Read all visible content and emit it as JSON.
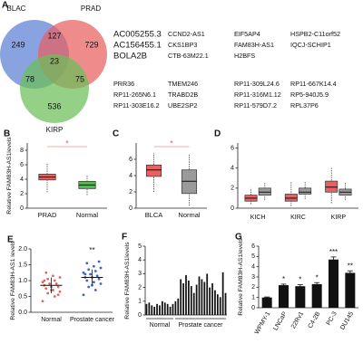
{
  "venn": {
    "label": "A",
    "sets": [
      {
        "name": "BLAC",
        "color": "#5b7fd6"
      },
      {
        "name": "PRAD",
        "color": "#e8605f"
      },
      {
        "name": "KIRP",
        "color": "#6bbf59"
      }
    ],
    "counts": [
      249,
      127,
      729,
      23,
      78,
      75,
      536
    ]
  },
  "genes": {
    "highlight": [
      "AC005255.3",
      "AC156455.1",
      "BOLA2B"
    ],
    "top": [
      [
        "CCND2-AS1",
        "CKS1BP3",
        "CTB-63M22.1"
      ],
      [
        "EIF5AP4",
        "FAM83H-AS1",
        "H2BFS"
      ],
      [
        "HSPB2-C11orf52",
        "IQCJ-SCHIP1"
      ]
    ],
    "bottom": [
      [
        "PRR36",
        "RP11-265N6.1",
        "RP11-303E16.2"
      ],
      [
        "TMEM246",
        "TRABD2B",
        "UBE2SP2"
      ],
      [
        "RP11-309L24.6",
        "RP11-316M1.12",
        "RP11-579D7.2"
      ],
      [
        "RP11-667K14.4",
        "RP5-940J5.9",
        "RPL37P6"
      ]
    ]
  },
  "box_b": {
    "label": "B",
    "ylabel": "Relative FAM83H-AS1levels",
    "categories": [
      "PRAD",
      "Normal"
    ],
    "ylim": [
      0,
      9
    ],
    "yticks": [
      0,
      2,
      4,
      6,
      8
    ],
    "annotation": "*",
    "series": [
      {
        "color": "#e8605f",
        "stats": [
          [
            2.2,
            3.9,
            4.3,
            4.7,
            6.2
          ],
          null
        ]
      },
      {
        "color": "#3cc93c",
        "stats": [
          null,
          [
            1.8,
            2.7,
            3.2,
            3.7,
            4.5
          ]
        ]
      }
    ]
  },
  "box_c": {
    "label": "C",
    "categories": [
      "BLCA",
      "Normal"
    ],
    "ylim": [
      0,
      8
    ],
    "yticks": [
      0,
      2,
      4,
      6
    ],
    "annotation": "*",
    "series": [
      {
        "color": "#e8605f",
        "stats": [
          [
            2.0,
            3.9,
            4.7,
            5.3,
            6.8
          ],
          null
        ]
      },
      {
        "color": "#9a9a9a",
        "stats": [
          null,
          [
            0.3,
            1.8,
            3.3,
            4.7,
            6.6
          ]
        ]
      }
    ]
  },
  "box_d": {
    "label": "D",
    "categories": [
      "KICH",
      "KIRC",
      "KIRP"
    ],
    "ylim": [
      0,
      6.5
    ],
    "yticks": [
      0,
      2,
      4,
      6
    ],
    "series": [
      {
        "color": "#e8605f",
        "stats": [
          [
            0.4,
            0.7,
            1.0,
            1.3,
            2.0
          ],
          [
            0.2,
            0.7,
            1.0,
            1.4,
            2.6
          ],
          [
            0.5,
            1.6,
            2.1,
            2.7,
            4.1
          ]
        ]
      },
      {
        "color": "#9a9a9a",
        "stats": [
          [
            0.8,
            1.3,
            1.6,
            2.0,
            2.6
          ],
          [
            0.9,
            1.4,
            1.6,
            2.0,
            2.7
          ],
          [
            0.8,
            1.3,
            1.6,
            1.9,
            2.6
          ]
        ]
      }
    ]
  },
  "scatter_e": {
    "label": "E",
    "ylabel": "Relative FAM83H-AS1 levels",
    "ylim": [
      0,
      2.0
    ],
    "yticks": [
      {
        "value": 0,
        "label": "0.0"
      },
      {
        "value": 0.5,
        "label": "0.5"
      },
      {
        "value": 1.0,
        "label": "1.0"
      },
      {
        "value": 1.5,
        "label": "1.5"
      },
      {
        "value": 2.0,
        "label": "2.0"
      }
    ],
    "annotation": "**",
    "groups": [
      {
        "name": "Normal",
        "color": "#e8605f",
        "mean": 0.85,
        "sd": 0.25,
        "values": [
          0.35,
          0.5,
          0.6,
          0.65,
          0.7,
          0.75,
          0.8,
          0.8,
          0.85,
          0.9,
          0.9,
          0.95,
          1.0,
          1.05,
          1.1,
          1.15,
          1.25,
          0.55,
          0.7,
          1.0
        ]
      },
      {
        "name": "Prostate cancer",
        "color": "#3f5fc8",
        "mean": 1.1,
        "sd": 0.25,
        "values": [
          0.55,
          0.7,
          0.8,
          0.9,
          0.95,
          1.0,
          1.05,
          1.1,
          1.1,
          1.15,
          1.2,
          1.25,
          1.3,
          1.35,
          1.4,
          1.45,
          1.55,
          1.6,
          0.85,
          1.2
        ]
      }
    ]
  },
  "bars_f": {
    "label": "F",
    "ylabel": "Relative FAM83H-AS1levels",
    "ylim": [
      0,
      5
    ],
    "yticks": [
      0,
      1,
      2,
      3,
      4,
      5
    ],
    "color": "#111111",
    "groups": [
      {
        "name": "Normal",
        "values": [
          0.8,
          0.9,
          0.7,
          0.6,
          0.8,
          0.7,
          1.0,
          0.9,
          0.8,
          0.6,
          0.8
        ]
      },
      {
        "name": "Prostate cancer",
        "values": [
          1.0,
          1.2,
          2.6,
          2.3,
          2.9,
          2.5,
          2.1,
          1.6,
          2.2,
          2.8,
          2.6,
          2.4,
          3.0,
          2.0,
          2.3,
          1.8,
          1.5,
          1.3,
          3.1,
          1.6
        ]
      }
    ]
  },
  "bars_g": {
    "label": "G",
    "ylabel": "Relative FAM83H-AS1levels",
    "ylim": [
      0,
      6
    ],
    "yticks": [
      0,
      1,
      2,
      3,
      4,
      5,
      6
    ],
    "color": "#111111",
    "categories": [
      "WPMY-1",
      "LNCaP",
      "22Rv1",
      "C4-2B",
      "PC-3",
      "DU145"
    ],
    "values": [
      1.0,
      2.2,
      2.1,
      2.3,
      4.7,
      3.4
    ],
    "errors": [
      0.05,
      0.1,
      0.15,
      0.15,
      0.25,
      0.2
    ],
    "annotations": [
      null,
      "*",
      "*",
      "*",
      "***",
      "**"
    ]
  }
}
